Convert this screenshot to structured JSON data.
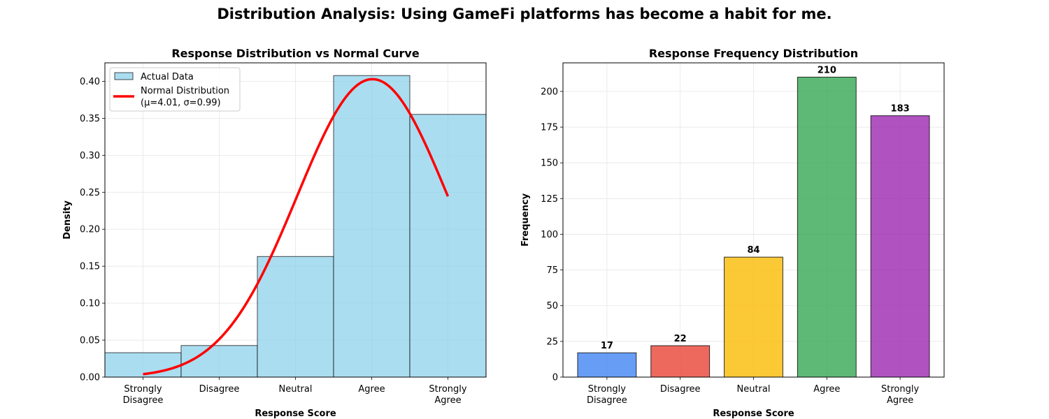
{
  "figure": {
    "suptitle": "Distribution Analysis: Using GameFi platforms has become a habit for me."
  },
  "chart_data": [
    {
      "type": "bar",
      "subtype": "histogram-with-normal-curve",
      "title": "Response Distribution vs Normal Curve",
      "xlabel": "Response Score",
      "ylabel": "Density",
      "categories": [
        "Strongly Disagree",
        "Disagree",
        "Neutral",
        "Agree",
        "Strongly Agree"
      ],
      "category_lines": [
        [
          "Strongly",
          "Disagree"
        ],
        [
          "Disagree"
        ],
        [
          "Neutral"
        ],
        [
          "Agree"
        ],
        [
          "Strongly",
          "Agree"
        ]
      ],
      "x_values": [
        1,
        2,
        3,
        4,
        5
      ],
      "xlim": [
        0.5,
        5.5
      ],
      "ylim": [
        0,
        0.425
      ],
      "yticks": [
        0.0,
        0.05,
        0.1,
        0.15,
        0.2,
        0.25,
        0.3,
        0.35,
        0.4
      ],
      "ytick_labels": [
        "0.00",
        "0.05",
        "0.10",
        "0.15",
        "0.20",
        "0.25",
        "0.30",
        "0.35",
        "0.40"
      ],
      "grid": true,
      "legend_position": "upper-left",
      "series": [
        {
          "name": "Actual Data",
          "kind": "bar",
          "values": [
            0.033,
            0.0427,
            0.1631,
            0.4078,
            0.3553
          ],
          "color": "#87ceeb",
          "alpha": 0.7
        },
        {
          "name": "Normal Distribution",
          "name_line2": "(μ=4.01, σ=0.99)",
          "kind": "line",
          "mu": 4.01,
          "sigma": 0.99,
          "x_range": [
            1,
            5
          ],
          "color": "#ff0000"
        }
      ]
    },
    {
      "type": "bar",
      "title": "Response Frequency Distribution",
      "xlabel": "Response Score",
      "ylabel": "Frequency",
      "categories": [
        "Strongly Disagree",
        "Disagree",
        "Neutral",
        "Agree",
        "Strongly Agree"
      ],
      "category_lines": [
        [
          "Strongly",
          "Disagree"
        ],
        [
          "Disagree"
        ],
        [
          "Neutral"
        ],
        [
          "Agree"
        ],
        [
          "Strongly",
          "Agree"
        ]
      ],
      "values": [
        17,
        22,
        84,
        210,
        183
      ],
      "data_labels": [
        "17",
        "22",
        "84",
        "210",
        "183"
      ],
      "colors": [
        "#4285f4",
        "#ea4335",
        "#fbbc04",
        "#34a853",
        "#9c27b0"
      ],
      "alpha": 0.8,
      "ylim": [
        0,
        220
      ],
      "yticks": [
        0,
        25,
        50,
        75,
        100,
        125,
        150,
        175,
        200
      ],
      "ytick_labels": [
        "0",
        "25",
        "50",
        "75",
        "100",
        "125",
        "150",
        "175",
        "200"
      ],
      "grid": true
    }
  ]
}
